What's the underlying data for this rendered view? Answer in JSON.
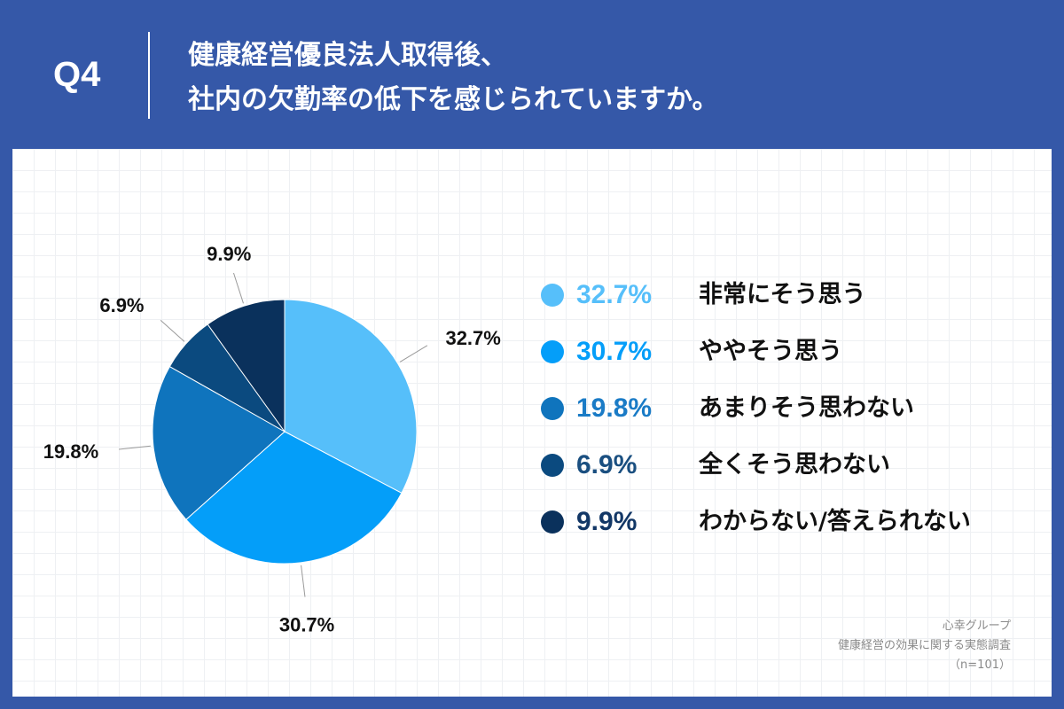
{
  "header": {
    "q_label": "Q4",
    "title_line1": "健康経営優良法人取得後、",
    "title_line2": "社内の欠勤率の低下を感じられていますか。"
  },
  "chart_data": {
    "type": "pie",
    "title": "健康経営優良法人取得後、社内の欠勤率の低下を感じられていますか。",
    "start_angle_deg": 0,
    "direction": "clockwise",
    "slices": [
      {
        "label": "非常にそう思う",
        "value": 32.7,
        "value_label": "32.7%",
        "color": "#56bffa"
      },
      {
        "label": "ややそう思う",
        "value": 30.7,
        "value_label": "30.7%",
        "color": "#049ef9"
      },
      {
        "label": "あまりそう思わない",
        "value": 19.8,
        "value_label": "19.8%",
        "color": "#0f74bd"
      },
      {
        "label": "全くそう思わない",
        "value": 6.9,
        "value_label": "6.9%",
        "color": "#0b4a7f"
      },
      {
        "label": "わからない/答えられない",
        "value": 9.9,
        "value_label": "9.9%",
        "color": "#0a315c"
      }
    ],
    "legend_position": "right",
    "legend_pct_colors": [
      "#56bffa",
      "#049ef9",
      "#1a7bc6",
      "#1a4f80",
      "#123766"
    ]
  },
  "source": {
    "line1": "心幸グループ",
    "line2": "健康経営の効果に関する実態調査",
    "line3": "（n=101）"
  }
}
